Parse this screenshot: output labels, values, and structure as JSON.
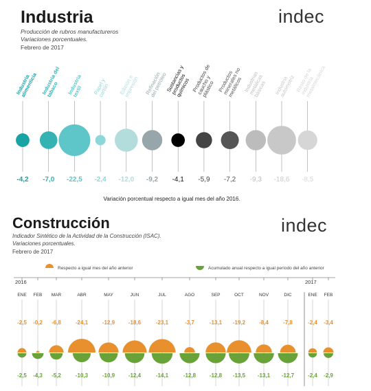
{
  "industria": {
    "title": "Industria",
    "subtitle1": "Producción de rubros manufactureros",
    "subtitle2": "Variaciones porcentuales.",
    "date": "Febrero de 2017",
    "logo": "indec",
    "caption": "Variación porcentual respecto a igual mes del año 2016.",
    "chart_data": {
      "type": "scatter",
      "categories": [
        "Industria alimenticia",
        "Industria del tabaco",
        "Industria textil",
        "Papel y cartón",
        "Edición e impresión",
        "Refinación del petróleo",
        "Sustancias y productos químicos",
        "Productos de caucho y plástico",
        "Productos minerales no metálicos",
        "Industrias metálicas básicas",
        "Industria automotriz",
        "Resto de la industria metalmecánica"
      ],
      "labels": [
        "-4,2",
        "-7,0",
        "-22,5",
        "-2,4",
        "-12,0",
        "-9,2",
        "-4,1",
        "-5,9",
        "-7,2",
        "-9,3",
        "-18,6",
        "-8,5"
      ],
      "values": [
        -4.2,
        -7.0,
        -22.5,
        -2.4,
        -12.0,
        -9.2,
        -4.1,
        -5.9,
        -7.2,
        -9.3,
        -18.6,
        -8.5
      ],
      "colors": [
        "#1aa3a3",
        "#35b3b3",
        "#5ec5c8",
        "#8cd7d9",
        "#b3dcdd",
        "#97a6ab",
        "#000000",
        "#444444",
        "#555555",
        "#bcbcbc",
        "#c8c8c8",
        "#d6d6d6"
      ]
    }
  },
  "construccion": {
    "title": "Construcción",
    "subtitle1": "Indicador Sintético de la Actividad de la Construcción (ISAC).",
    "subtitle2": "Variaciones porcentuales.",
    "date": "Febrero de 2017",
    "logo": "indec",
    "legend_monthly": "Respecto a igual mes del año anterior",
    "legend_cumulative": "Acumulado anual respecto a igual período del año anterior",
    "color_monthly": "#e8902e",
    "color_cumulative": "#6aa23a",
    "chart_data": {
      "type": "bar",
      "years": [
        "2016",
        "2017"
      ],
      "categories": [
        "ENE",
        "FEB",
        "MAR",
        "ABR",
        "MAY",
        "JUN",
        "JUL",
        "AGO",
        "SEP",
        "OCT",
        "NOV",
        "DIC",
        "ENE",
        "FEB"
      ],
      "series": [
        {
          "name": "Respecto a igual mes del año anterior",
          "labels": [
            "-2,5",
            "-0,2",
            "-6,8",
            "-24,1",
            "-12,9",
            "-18,6",
            "-23,1",
            "-3,7",
            "-13,1",
            "-19,2",
            "-8,4",
            "-7,8",
            "-2,4",
            "-3,4"
          ],
          "values": [
            -2.5,
            -0.2,
            -6.8,
            -24.1,
            -12.9,
            -18.6,
            -23.1,
            -3.7,
            -13.1,
            -19.2,
            -8.4,
            -7.8,
            -2.4,
            -3.4
          ]
        },
        {
          "name": "Acumulado anual respecto a igual período del año anterior",
          "labels": [
            "-2,5",
            "-4,3",
            "-5,2",
            "-10,3",
            "-10,9",
            "-12,4",
            "-14,1",
            "-12,8",
            "-12,8",
            "-13,5",
            "-13,1",
            "-12,7",
            "-2,4",
            "-2,9"
          ],
          "values": [
            -2.5,
            -4.3,
            -5.2,
            -10.3,
            -10.9,
            -12.4,
            -14.1,
            -12.8,
            -12.8,
            -13.5,
            -13.1,
            -12.7,
            -2.4,
            -2.9
          ]
        }
      ]
    }
  }
}
